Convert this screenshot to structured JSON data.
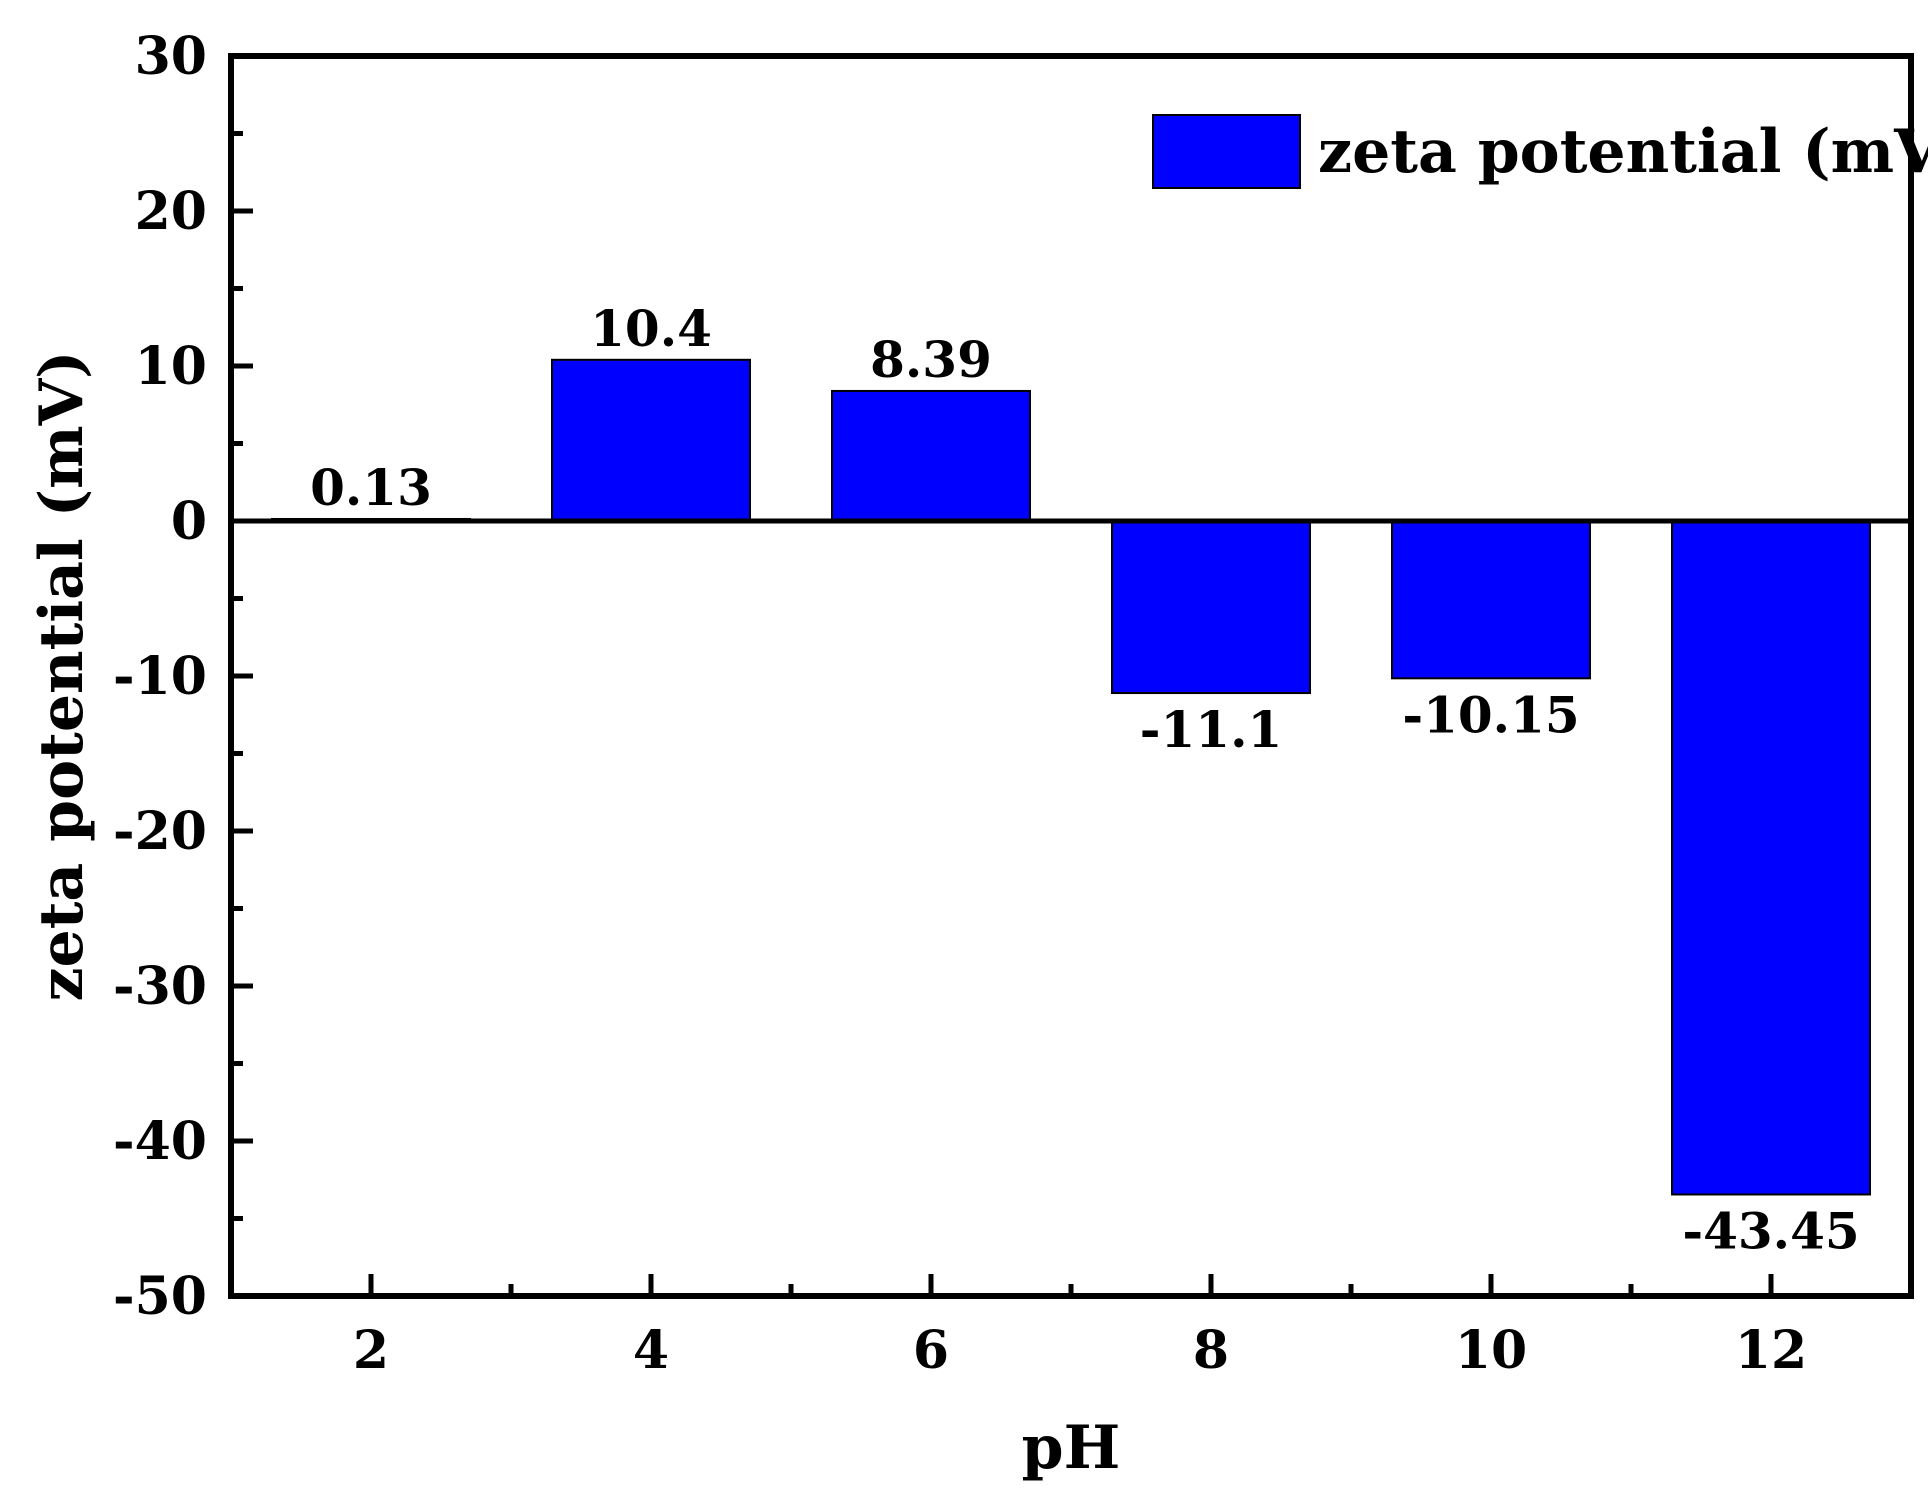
{
  "chart_data": {
    "type": "bar",
    "title": "",
    "xlabel": "pH",
    "ylabel": "zeta potential (mV)",
    "categories": [
      "2",
      "4",
      "6",
      "8",
      "10",
      "12"
    ],
    "x": [
      2,
      4,
      6,
      8,
      10,
      12
    ],
    "values": [
      0.13,
      10.4,
      8.39,
      -11.1,
      -10.15,
      -43.45
    ],
    "data_labels": [
      "0.13",
      "10.4",
      "8.39",
      "-11.1",
      "-10.15",
      "-43.45"
    ],
    "series": [
      {
        "name": "zeta potential (mV)",
        "values": [
          0.13,
          10.4,
          8.39,
          -11.1,
          -10.15,
          -43.45
        ]
      }
    ],
    "xlim": [
      1,
      13
    ],
    "ylim": [
      -50,
      30
    ],
    "yticks": [
      30,
      20,
      10,
      0,
      -10,
      -20,
      -30,
      -40,
      -50
    ],
    "ytick_labels": [
      "30",
      "20",
      "10",
      "0",
      "-10",
      "-20",
      "-30",
      "-40",
      "-50"
    ],
    "legend": {
      "label": "zeta potential (mV)",
      "position": "top-right"
    },
    "bar_color": "#0000ff",
    "grid": false
  }
}
